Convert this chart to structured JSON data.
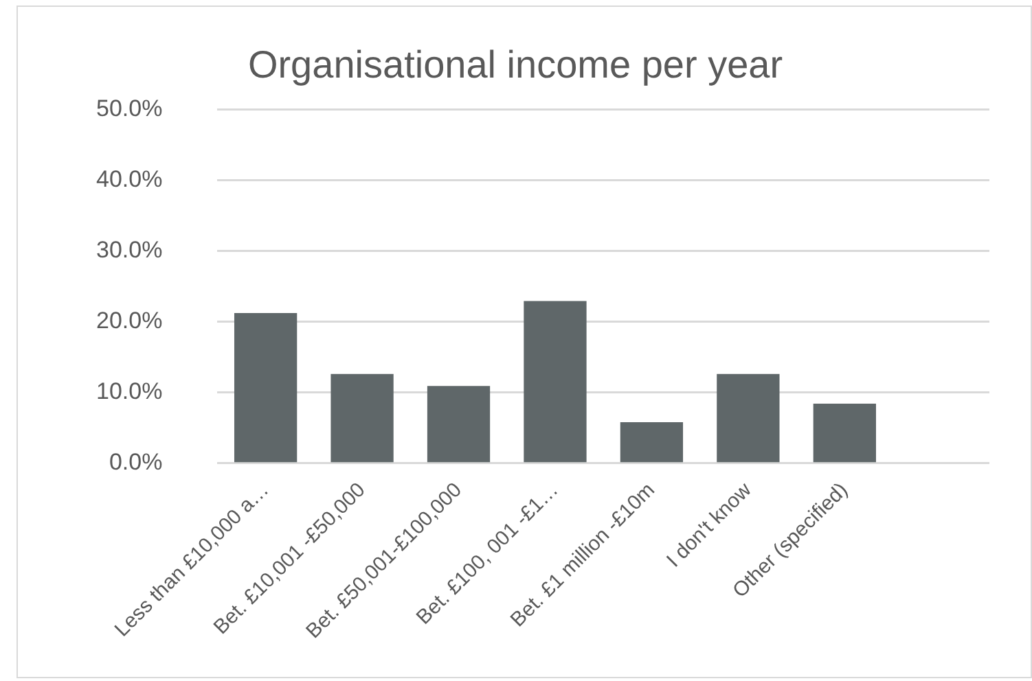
{
  "chart_data": {
    "type": "bar",
    "title": "Organisational income per year",
    "categories": [
      "Less than £10,000 a…",
      "Bet. £10,001 -£50,000",
      "Bet. £50,001-£100,000",
      "Bet. £100, 001 -£1…",
      "Bet. £1 million -£10m",
      "I don't know",
      "Other (specified)",
      null
    ],
    "values": [
      21.2,
      12.6,
      10.9,
      22.9,
      5.8,
      12.6,
      8.4,
      null
    ],
    "color": "#5f6769",
    "ylim": [
      0,
      50
    ],
    "yticks": [
      {
        "value": 0,
        "label": "0.0%"
      },
      {
        "value": 10,
        "label": "10.0%"
      },
      {
        "value": 20,
        "label": "20.0%"
      },
      {
        "value": 30,
        "label": "30.0%"
      },
      {
        "value": 40,
        "label": "40.0%"
      },
      {
        "value": 50,
        "label": "50.0%"
      }
    ],
    "grid": "y",
    "legend": false
  }
}
